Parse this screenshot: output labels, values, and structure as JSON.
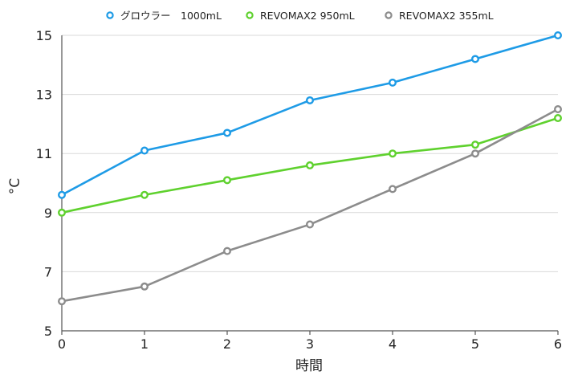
{
  "chart_data": {
    "type": "line",
    "title": "",
    "xlabel": "時間",
    "ylabel": "°C",
    "x": [
      0,
      1,
      2,
      3,
      4,
      5,
      6
    ],
    "xlim": [
      0,
      6
    ],
    "ylim": [
      5,
      15
    ],
    "yticks": [
      5,
      7,
      9,
      11,
      13,
      15
    ],
    "grid": true,
    "legend_position": "top",
    "series": [
      {
        "name": "グロウラー　1000mL",
        "color": "#1e9be6",
        "values": [
          9.6,
          11.1,
          11.7,
          12.8,
          13.4,
          14.2,
          15.0
        ]
      },
      {
        "name": "REVOMAX2 950mL",
        "color": "#5fd12e",
        "values": [
          9.0,
          9.6,
          10.1,
          10.6,
          11.0,
          11.3,
          12.2
        ]
      },
      {
        "name": "REVOMAX2 355mL",
        "color": "#8c8c8c",
        "values": [
          6.0,
          6.5,
          7.7,
          8.6,
          9.8,
          11.0,
          12.5
        ]
      }
    ]
  }
}
